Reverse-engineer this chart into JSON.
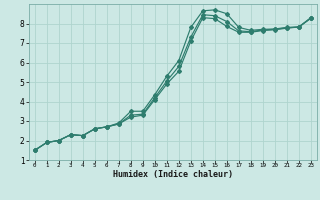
{
  "xlabel": "Humidex (Indice chaleur)",
  "ylabel": "",
  "bg_color": "#cce8e4",
  "grid_color": "#afd4ce",
  "line_color": "#2e7d6e",
  "xlim": [
    -0.5,
    23.5
  ],
  "ylim": [
    1.0,
    9.0
  ],
  "xticks": [
    0,
    1,
    2,
    3,
    4,
    5,
    6,
    7,
    8,
    9,
    10,
    11,
    12,
    13,
    14,
    15,
    16,
    17,
    18,
    19,
    20,
    21,
    22,
    23
  ],
  "yticks": [
    1,
    2,
    3,
    4,
    5,
    6,
    7,
    8
  ],
  "curve1_x": [
    0,
    1,
    2,
    3,
    4,
    5,
    6,
    7,
    8,
    9,
    10,
    11,
    12,
    13,
    14,
    15,
    16,
    17,
    18,
    19,
    20,
    21,
    22,
    23
  ],
  "curve1_y": [
    1.5,
    1.9,
    2.0,
    2.3,
    2.25,
    2.6,
    2.7,
    2.9,
    3.5,
    3.5,
    4.35,
    5.3,
    6.1,
    7.8,
    8.65,
    8.7,
    8.5,
    7.8,
    7.65,
    7.7,
    7.72,
    7.8,
    7.82,
    8.3
  ],
  "curve2_x": [
    0,
    1,
    2,
    3,
    4,
    5,
    6,
    7,
    8,
    9,
    10,
    11,
    12,
    13,
    14,
    15,
    16,
    17,
    18,
    19,
    20,
    21,
    22,
    23
  ],
  "curve2_y": [
    1.5,
    1.9,
    2.0,
    2.3,
    2.25,
    2.6,
    2.7,
    2.85,
    3.3,
    3.35,
    4.2,
    5.05,
    5.8,
    7.3,
    8.45,
    8.4,
    8.1,
    7.62,
    7.58,
    7.67,
    7.7,
    7.78,
    7.82,
    8.28
  ],
  "curve3_x": [
    0,
    1,
    2,
    3,
    4,
    5,
    6,
    7,
    8,
    9,
    10,
    11,
    12,
    13,
    14,
    15,
    16,
    17,
    18,
    19,
    20,
    21,
    22,
    23
  ],
  "curve3_y": [
    1.5,
    1.9,
    2.0,
    2.3,
    2.25,
    2.6,
    2.7,
    2.85,
    3.2,
    3.3,
    4.1,
    4.9,
    5.55,
    7.1,
    8.3,
    8.25,
    7.85,
    7.55,
    7.55,
    7.64,
    7.68,
    7.76,
    7.82,
    8.26
  ]
}
